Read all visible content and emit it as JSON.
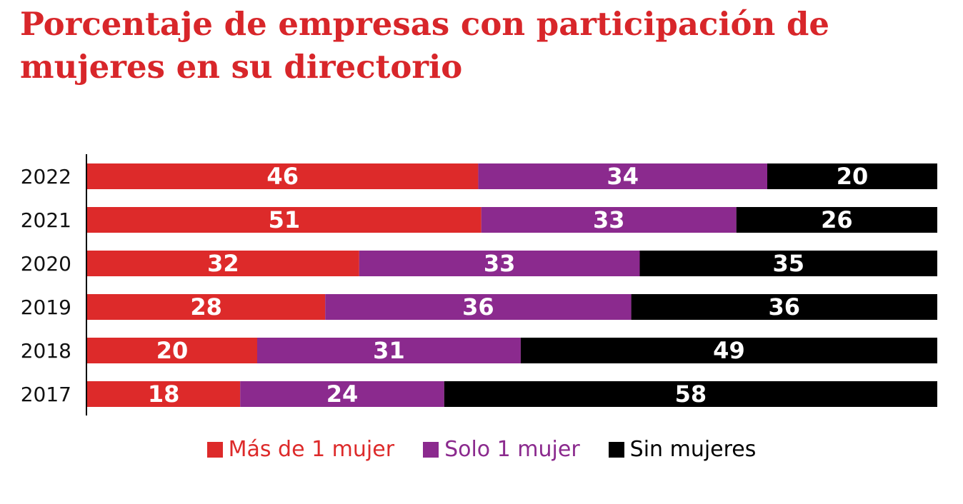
{
  "title": "Porcentaje de empresas con participación de mujeres en su directorio",
  "colors": {
    "title": "#d8262a",
    "mas_de_1": "#dd2a2a",
    "solo_1": "#8b2a8e",
    "sin": "#000000"
  },
  "chart_data": {
    "type": "bar",
    "orientation": "horizontal",
    "stacked": true,
    "categories": [
      "2022",
      "2021",
      "2020",
      "2019",
      "2018",
      "2017"
    ],
    "series": [
      {
        "name": "Más de 1 mujer",
        "values": [
          46,
          51,
          32,
          28,
          20,
          18
        ]
      },
      {
        "name": "Solo 1 mujer",
        "values": [
          34,
          33,
          33,
          36,
          31,
          24
        ]
      },
      {
        "name": "Sin mujeres",
        "values": [
          20,
          26,
          35,
          36,
          49,
          58
        ]
      }
    ],
    "legend_position": "bottom",
    "grid": false
  }
}
